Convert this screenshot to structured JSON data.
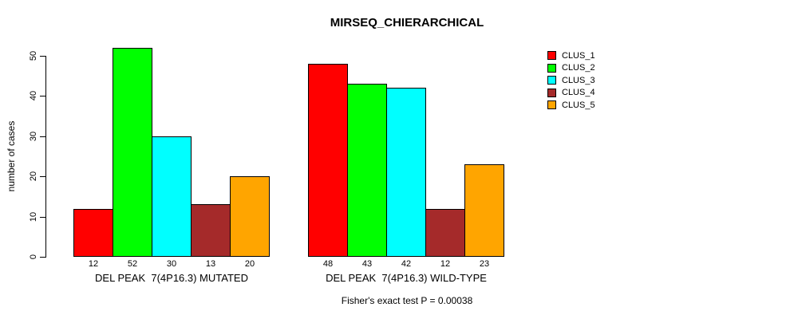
{
  "chart_data": {
    "type": "bar",
    "title": "MIRSEQ_CHIERARCHICAL",
    "subtitle": "Fisher's exact test P = 0.00038",
    "ylabel": "number of cases",
    "xlabel": "",
    "yticks": [
      0,
      10,
      20,
      30,
      40,
      50
    ],
    "ylim": [
      0,
      55
    ],
    "grid": false,
    "legend_position": "top-right",
    "bar_value_labels_shown": true,
    "series": [
      {
        "name": "CLUS_1",
        "color": "#FF0000"
      },
      {
        "name": "CLUS_2",
        "color": "#00FF00"
      },
      {
        "name": "CLUS_3",
        "color": "#00FFFF"
      },
      {
        "name": "CLUS_4",
        "color": "#A52A2A"
      },
      {
        "name": "CLUS_5",
        "color": "#FFA500"
      }
    ],
    "groups": [
      {
        "label": "DEL PEAK  7(4P16.3) MUTATED",
        "values": [
          12,
          52,
          30,
          13,
          20
        ]
      },
      {
        "label": "DEL PEAK  7(4P16.3) WILD-TYPE",
        "values": [
          48,
          43,
          42,
          12,
          23
        ]
      }
    ],
    "colors": {
      "background": "#FFFFFF",
      "axis": "#000000",
      "text": "#000000"
    }
  }
}
